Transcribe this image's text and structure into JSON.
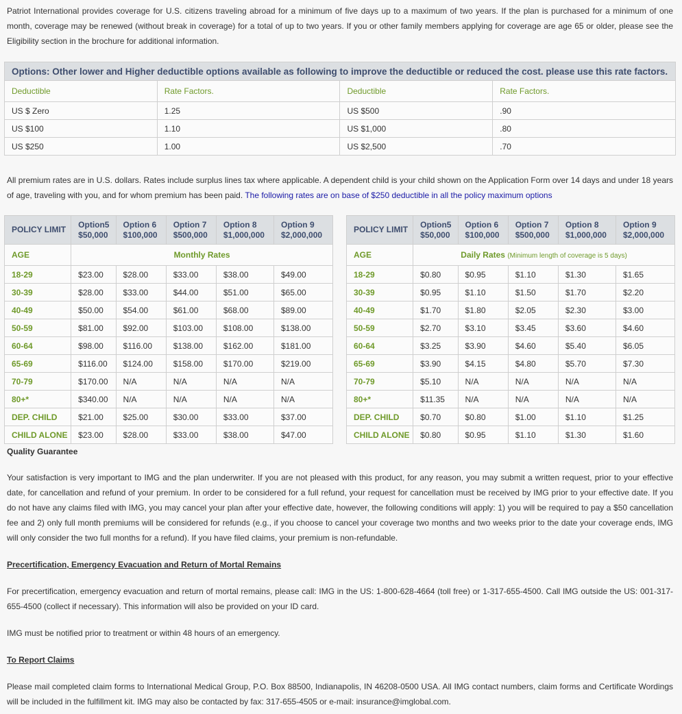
{
  "intro": "Patriot International provides coverage for U.S. citizens traveling abroad for a minimum of five days up to a maximum of two years. If the plan is purchased for a minimum of one month, coverage may be renewed (without break in coverage) for a total of up to two years. If you or other family members applying for coverage are age 65 or older, please see the Eligibility section in the brochure for additional information.",
  "options": {
    "title": "Options: Other lower and Higher deductible options available as following to improve the deductible or reduced the cost. please use this rate factors.",
    "header": [
      "Deductible",
      "Rate Factors.",
      "Deductible",
      "Rate Factors."
    ],
    "rows": [
      [
        "US $ Zero",
        "1.25",
        "US $500",
        ".90"
      ],
      [
        "US $100",
        "1.10",
        "US $1,000",
        ".80"
      ],
      [
        "US $250",
        "1.00",
        "US $2,500",
        ".70"
      ]
    ]
  },
  "premium_note": {
    "text": "All premium rates are in U.S. dollars. Rates include surplus lines tax where applicable. A dependent child is your child shown on the Application Form over 14 days and under 18 years of age, traveling with you, and for whom premium has been paid.",
    "highlight": "The following rates are on base of $250 deductible in all the policy maximum options"
  },
  "monthly": {
    "policy_limit": "POLICY LIMIT",
    "options": [
      {
        "name": "Option5",
        "limit": "$50,000"
      },
      {
        "name": "Option 6",
        "limit": "$100,000"
      },
      {
        "name": "Option 7",
        "limit": "$500,000"
      },
      {
        "name": "Option 8",
        "limit": "$1,000,000"
      },
      {
        "name": "Option 9",
        "limit": "$2,000,000"
      }
    ],
    "age_label": "AGE",
    "rates_label": "Monthly Rates",
    "rows": [
      [
        "18-29",
        "$23.00",
        "$28.00",
        "$33.00",
        "$38.00",
        "$49.00"
      ],
      [
        "30-39",
        "$28.00",
        "$33.00",
        "$44.00",
        "$51.00",
        "$65.00"
      ],
      [
        "40-49",
        "$50.00",
        "$54.00",
        "$61.00",
        "$68.00",
        "$89.00"
      ],
      [
        "50-59",
        "$81.00",
        "$92.00",
        "$103.00",
        "$108.00",
        "$138.00"
      ],
      [
        "60-64",
        "$98.00",
        "$116.00",
        "$138.00",
        "$162.00",
        "$181.00"
      ],
      [
        "65-69",
        "$116.00",
        "$124.00",
        "$158.00",
        "$170.00",
        "$219.00"
      ],
      [
        "70-79",
        "$170.00",
        "N/A",
        "N/A",
        "N/A",
        "N/A"
      ],
      [
        "80+*",
        "$340.00",
        "N/A",
        "N/A",
        "N/A",
        "N/A"
      ],
      [
        "DEP. CHILD",
        "$21.00",
        "$25.00",
        "$30.00",
        "$33.00",
        "$37.00"
      ],
      [
        "CHILD ALONE",
        "$23.00",
        "$28.00",
        "$33.00",
        "$38.00",
        "$47.00"
      ]
    ]
  },
  "daily": {
    "policy_limit": "POLICY LIMIT",
    "options": [
      {
        "name": "Option5",
        "limit": "$50,000"
      },
      {
        "name": "Option 6",
        "limit": "$100,000"
      },
      {
        "name": "Option 7",
        "limit": "$500,000"
      },
      {
        "name": "Option 8",
        "limit": "$1,000,000"
      },
      {
        "name": "Option 9",
        "limit": "$2,000,000"
      }
    ],
    "age_label": "AGE",
    "rates_label": "Daily Rates",
    "rates_note": "(Minimum length of coverage is 5 days)",
    "rows": [
      [
        "18-29",
        "$0.80",
        "$0.95",
        "$1.10",
        "$1.30",
        "$1.65"
      ],
      [
        "30-39",
        "$0.95",
        "$1.10",
        "$1.50",
        "$1.70",
        "$2.20"
      ],
      [
        "40-49",
        "$1.70",
        "$1.80",
        "$2.05",
        "$2.30",
        "$3.00"
      ],
      [
        "50-59",
        "$2.70",
        "$3.10",
        "$3.45",
        "$3.60",
        "$4.60"
      ],
      [
        "60-64",
        "$3.25",
        "$3.90",
        "$4.60",
        "$5.40",
        "$6.05"
      ],
      [
        "65-69",
        "$3.90",
        "$4.15",
        "$4.80",
        "$5.70",
        "$7.30"
      ],
      [
        "70-79",
        "$5.10",
        "N/A",
        "N/A",
        "N/A",
        "N/A"
      ],
      [
        "80+*",
        "$11.35",
        "N/A",
        "N/A",
        "N/A",
        "N/A"
      ],
      [
        "DEP. CHILD",
        "$0.70",
        "$0.80",
        "$1.00",
        "$1.10",
        "$1.25"
      ],
      [
        "CHILD ALONE",
        "$0.80",
        "$0.95",
        "$1.10",
        "$1.30",
        "$1.60"
      ]
    ]
  },
  "quality": {
    "title": "Quality Guarantee",
    "text": "Your satisfaction is very important to IMG and the plan underwriter. If you are not pleased with this product, for any reason, you may submit a written request, prior to your effective date, for cancellation and refund of your premium. In order to be considered for a full refund, your request for cancellation must be received by IMG prior to your effective date. If you do not have any claims filed with IMG, you may cancel your plan after your effective date, however, the following conditions will apply: 1) you will be required to pay a $50 cancellation fee and 2) only full month premiums will be considered for refunds (e.g., if you choose to cancel your coverage two months and two weeks prior to the date your coverage ends, IMG will only consider the two full months for a refund). If you have filed claims, your premium is non-refundable."
  },
  "precert": {
    "title": "Precertification, Emergency Evacuation and Return of Mortal Remains",
    "text": "For precertification, emergency evacuation and return of mortal remains, please call: IMG in the US: 1-800-628-4664 (toll free) or 1-317-655-4500. Call IMG outside the US: 001-317-655-4500 (collect if necessary). This information will also be provided on your ID card.",
    "note": "IMG must be notified prior to treatment or within 48 hours of an emergency."
  },
  "claims": {
    "title": "To Report Claims",
    "text": "Please mail completed claim forms to International Medical Group, P.O. Box 88500, Indianapolis, IN 46208-0500 USA. All IMG contact numbers, claim forms and Certificate Wordings will be included in the fulfillment kit. IMG may also be contacted by fax: 317-655-4505 or e-mail: insurance@imglobal.com."
  }
}
